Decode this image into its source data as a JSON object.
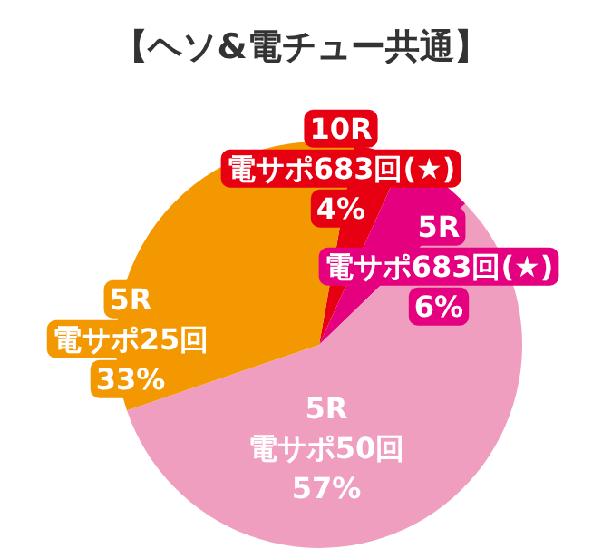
{
  "chart_data": {
    "type": "pie",
    "title": "【ヘソ&電チュー共通】",
    "categories": [
      "10R\n電サポ683回(★)",
      "5R\n電サポ683回(★)",
      "5R\n電サポ50回",
      "5R\n電サポ25回"
    ],
    "values": [
      4,
      6,
      57,
      33
    ],
    "value_labels": [
      "4%",
      "6%",
      "57%",
      "33%"
    ],
    "colors": [
      "#e60012",
      "#e4007f",
      "#f09ec0",
      "#f39800"
    ]
  }
}
